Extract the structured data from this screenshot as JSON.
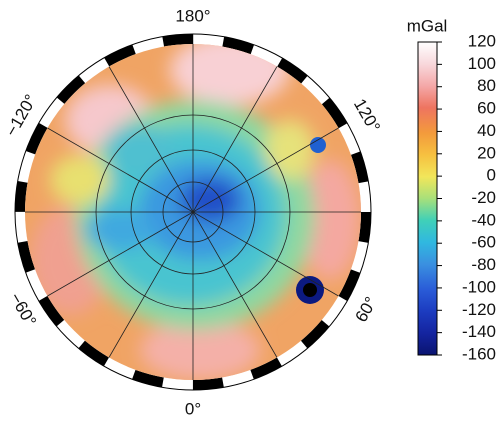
{
  "map": {
    "longitude_labels": {
      "top": "180°",
      "upper_right": "120°",
      "lower_right": "60°",
      "bottom": "0°",
      "lower_left": "−60°",
      "upper_left": "−120°"
    }
  },
  "colorbar": {
    "label": "mGal",
    "range": [
      -160,
      120
    ],
    "ticks": [
      120,
      100,
      80,
      60,
      40,
      20,
      0,
      -20,
      -40,
      -60,
      -80,
      -100,
      -120,
      -140,
      -160
    ]
  }
}
